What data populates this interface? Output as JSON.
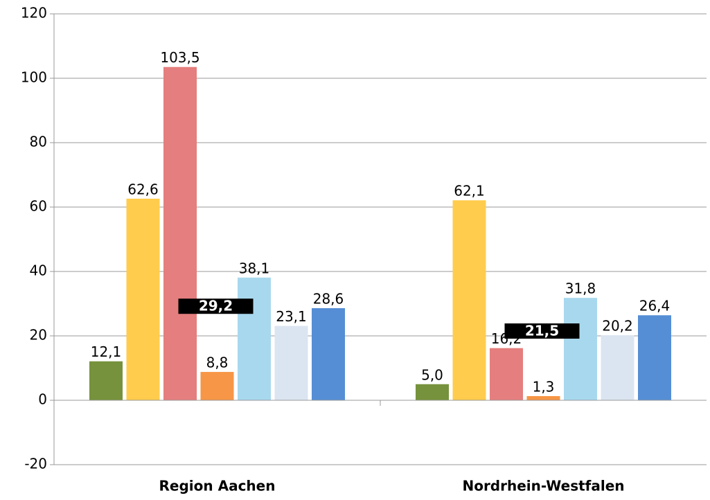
{
  "chart_data": {
    "type": "bar",
    "categories": [
      "Region Aachen",
      "Nordrhein-Westfalen"
    ],
    "series": [
      {
        "color": "#76923c",
        "values": [
          12.1,
          5.0
        ],
        "value_labels": [
          "12,1",
          "5,0"
        ]
      },
      {
        "color": "#ffcc4d",
        "values": [
          62.6,
          62.1
        ],
        "value_labels": [
          "62,6",
          "62,1"
        ]
      },
      {
        "color": "#e57e7e",
        "values": [
          103.5,
          16.2
        ],
        "value_labels": [
          "103,5",
          "16,2"
        ]
      },
      {
        "color": "#f79646",
        "values": [
          8.8,
          1.3
        ],
        "value_labels": [
          "8,8",
          "1,3"
        ]
      },
      {
        "color": "#a8d8ee",
        "values": [
          38.1,
          31.8
        ],
        "value_labels": [
          "38,1",
          "31,8"
        ]
      },
      {
        "color": "#dbe5f1",
        "values": [
          23.1,
          20.2
        ],
        "value_labels": [
          "23,1",
          "20,2"
        ]
      },
      {
        "color": "#558ed5",
        "values": [
          28.6,
          26.4
        ],
        "value_labels": [
          "28,6",
          "26,4"
        ]
      }
    ],
    "markers": {
      "color": "#000000",
      "values": [
        29.2,
        21.5
      ],
      "value_labels": [
        "29,2",
        "21,5"
      ]
    },
    "ylim": [
      -20,
      120
    ],
    "yticks": [
      -20,
      0,
      20,
      40,
      60,
      80,
      100,
      120
    ],
    "grid": true
  }
}
